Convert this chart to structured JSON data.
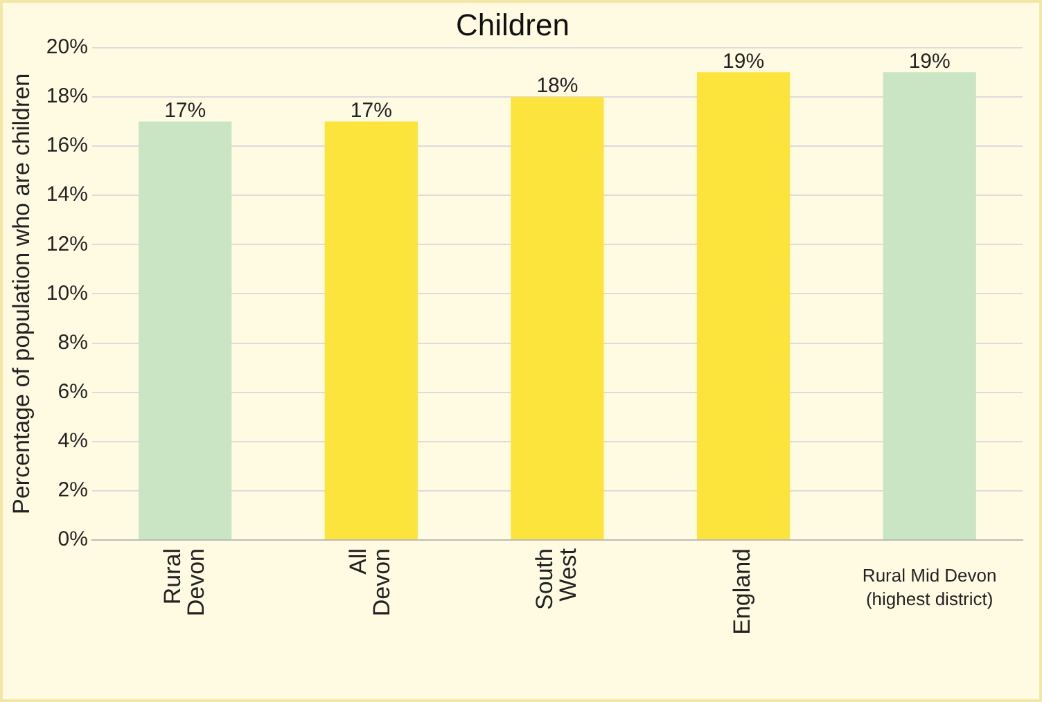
{
  "chart_data": {
    "type": "bar",
    "title": "Children",
    "ylabel": "Percentage of population who are children",
    "categories": [
      "Rural Devon",
      "All Devon",
      "South West",
      "England",
      "Rural Mid Devon (highest district)"
    ],
    "values": [
      17,
      17,
      18,
      19,
      19
    ],
    "colors": [
      "#c9e5c3",
      "#fde43c",
      "#fde43c",
      "#fde43c",
      "#c9e5c3"
    ],
    "value_labels": [
      "17%",
      "17%",
      "18%",
      "19%",
      "19%"
    ],
    "ylim": [
      0,
      20
    ],
    "yticks": [
      {
        "value": 0,
        "label": "0%"
      },
      {
        "value": 2,
        "label": "2%"
      },
      {
        "value": 4,
        "label": "4%"
      },
      {
        "value": 6,
        "label": "6%"
      },
      {
        "value": 8,
        "label": "8%"
      },
      {
        "value": 10,
        "label": "10%"
      },
      {
        "value": 12,
        "label": "12%"
      },
      {
        "value": 14,
        "label": "14%"
      },
      {
        "value": 16,
        "label": "16%"
      },
      {
        "value": 18,
        "label": "18%"
      },
      {
        "value": 20,
        "label": "20%"
      }
    ],
    "grid": "y",
    "legend": false
  }
}
